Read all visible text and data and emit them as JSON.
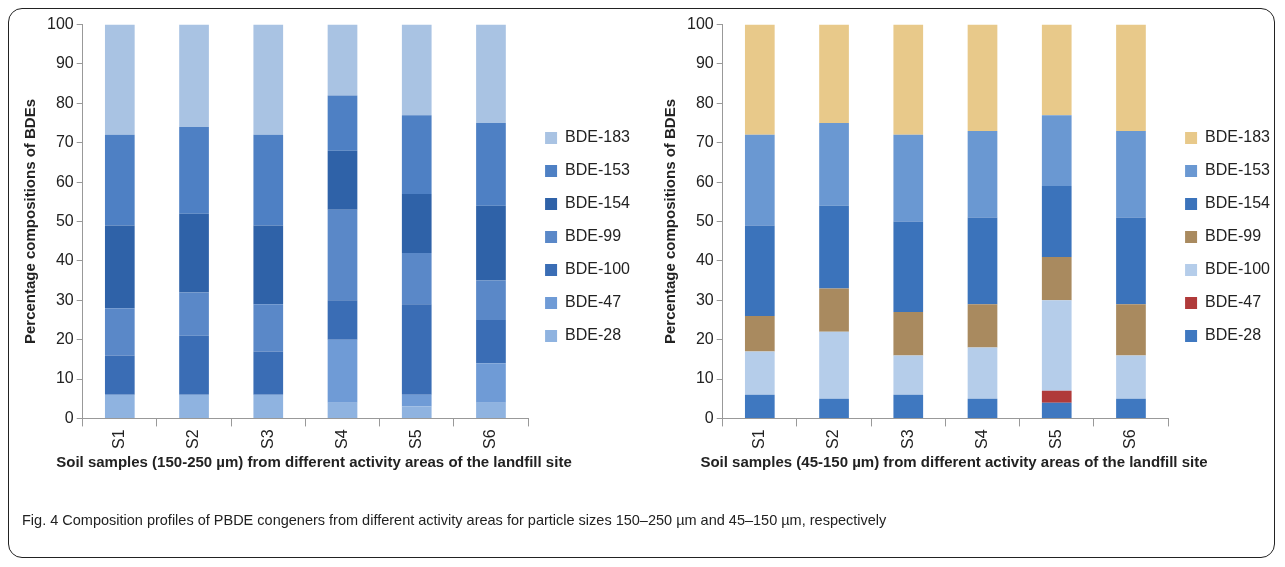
{
  "chart_data": [
    {
      "type": "bar",
      "stacked": true,
      "ylabel": "Percentage compositions of BDEs",
      "xlabel": "Soil samples (150-250 µm) from different activity areas of the landfill site",
      "categories": [
        "S1",
        "S2",
        "S3",
        "S4",
        "S5",
        "S6"
      ],
      "ylim": [
        0,
        100
      ],
      "yticks": [
        0,
        10,
        20,
        30,
        40,
        50,
        60,
        70,
        80,
        90,
        100
      ],
      "grid": false,
      "legend": "right",
      "series": [
        {
          "name": "BDE-28",
          "color": "#8fb3e0",
          "values": [
            6,
            6,
            6,
            4,
            3,
            4
          ]
        },
        {
          "name": "BDE-47",
          "color": "#6f9bd6",
          "values": [
            0,
            0,
            0,
            16,
            3,
            10
          ]
        },
        {
          "name": "BDE-100",
          "color": "#3a6db5",
          "values": [
            10,
            15,
            11,
            10,
            23,
            11
          ]
        },
        {
          "name": "BDE-99",
          "color": "#5a88c8",
          "values": [
            12,
            11,
            12,
            23,
            13,
            10
          ]
        },
        {
          "name": "BDE-154",
          "color": "#2f62a8",
          "values": [
            21,
            20,
            20,
            15,
            15,
            19
          ]
        },
        {
          "name": "BDE-153",
          "color": "#4e80c4",
          "values": [
            23,
            22,
            23,
            14,
            20,
            21
          ]
        },
        {
          "name": "BDE-183",
          "color": "#a9c3e3",
          "values": [
            28,
            26,
            28,
            18,
            23,
            25
          ]
        }
      ]
    },
    {
      "type": "bar",
      "stacked": true,
      "ylabel": "Percentage compositions of BDEs",
      "xlabel": "Soil samples (45-150 µm) from different activity areas of the landfill site",
      "categories": [
        "S1",
        "S2",
        "S3",
        "S4",
        "S5",
        "S6"
      ],
      "ylim": [
        0,
        100
      ],
      "yticks": [
        0,
        10,
        20,
        30,
        40,
        50,
        60,
        70,
        80,
        90,
        100
      ],
      "grid": false,
      "legend": "right",
      "annotations": [
        "Fig. 4 Composition profiles of PBDE congeners from different activity areas for particle sizes 150–250 µm and 45–150 µm, respectively"
      ],
      "series": [
        {
          "name": "BDE-28",
          "color": "#3f78c0",
          "values": [
            6,
            5,
            6,
            5,
            4,
            5
          ]
        },
        {
          "name": "BDE-47",
          "color": "#b03a3a",
          "values": [
            0,
            0,
            0,
            0,
            3,
            0
          ]
        },
        {
          "name": "BDE-100",
          "color": "#b5cdea",
          "values": [
            11,
            17,
            10,
            13,
            23,
            11
          ]
        },
        {
          "name": "BDE-99",
          "color": "#a98a5f",
          "values": [
            9,
            11,
            11,
            11,
            11,
            13
          ]
        },
        {
          "name": "BDE-154",
          "color": "#3b73bb",
          "values": [
            23,
            21,
            23,
            22,
            18,
            22
          ]
        },
        {
          "name": "BDE-153",
          "color": "#6a98d2",
          "values": [
            23,
            21,
            22,
            22,
            18,
            22
          ]
        },
        {
          "name": "BDE-183",
          "color": "#e8c98a",
          "values": [
            28,
            25,
            28,
            27,
            23,
            27
          ]
        }
      ]
    }
  ]
}
